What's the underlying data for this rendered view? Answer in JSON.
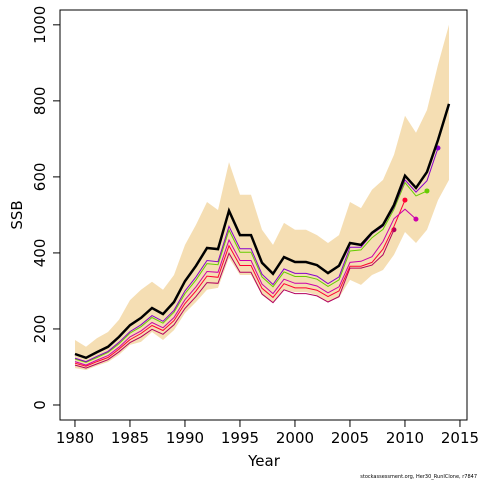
{
  "chart_data": {
    "type": "line",
    "x_label": "Year",
    "y_label": "SSB",
    "footnote": "stockassessment.org, Her30_RunIClone, r7847",
    "xlim": [
      1978.64,
      2015.64
    ],
    "ylim": [
      -39.5,
      1039
    ],
    "xticks": [
      1980,
      1985,
      1990,
      1995,
      2000,
      2005,
      2010,
      2015
    ],
    "yticks": [
      0,
      200,
      400,
      600,
      800,
      1000
    ],
    "x": [
      1980,
      1981,
      1982,
      1983,
      1984,
      1985,
      1986,
      1987,
      1988,
      1989,
      1990,
      1991,
      1992,
      1993,
      1994,
      1995,
      1996,
      1997,
      1998,
      1999,
      2000,
      2001,
      2002,
      2003,
      2004,
      2005,
      2006,
      2007,
      2008,
      2009,
      2010,
      2011,
      2012,
      2013,
      2014
    ],
    "band": {
      "color": "#f5deb3",
      "upper": [
        171,
        153,
        176,
        192,
        224,
        276,
        303,
        324,
        303,
        342,
        421,
        474,
        534,
        513,
        639,
        553,
        553,
        461,
        421,
        479,
        461,
        461,
        447,
        426,
        447,
        534,
        518,
        566,
        592,
        658,
        761,
        716,
        776,
        895,
        1000
      ],
      "lower": [
        97,
        92,
        103,
        113,
        132,
        158,
        166,
        192,
        171,
        197,
        242,
        271,
        303,
        308,
        387,
        342,
        342,
        289,
        268,
        303,
        297,
        297,
        289,
        271,
        282,
        329,
        316,
        342,
        355,
        395,
        455,
        426,
        461,
        539,
        592
      ]
    },
    "series": [
      {
        "color": "#b3005f",
        "width": 1,
        "end_dot": true,
        "values": [
          105,
          97,
          108,
          119,
          140,
          164,
          179,
          199,
          186,
          211,
          254,
          285,
          322,
          320,
          399,
          349,
          349,
          292,
          269,
          303,
          293,
          293,
          287,
          271,
          285,
          360,
          360,
          368,
          395,
          461,
          null,
          null,
          null,
          null,
          null
        ]
      },
      {
        "color": "#ff0033",
        "width": 1,
        "end_dot": true,
        "values": [
          110,
          102,
          114,
          125,
          147,
          172,
          188,
          209,
          196,
          222,
          267,
          300,
          339,
          336,
          419,
          367,
          367,
          307,
          283,
          319,
          308,
          308,
          302,
          285,
          300,
          365,
          365,
          375,
          410,
          470,
          539,
          null,
          null,
          null,
          null
        ]
      },
      {
        "color": "#cc00aa",
        "width": 1,
        "end_dot": true,
        "values": [
          114,
          105,
          118,
          130,
          152,
          179,
          195,
          217,
          203,
          230,
          277,
          311,
          351,
          349,
          434,
          380,
          380,
          318,
          293,
          331,
          320,
          320,
          313,
          295,
          311,
          375,
          378,
          390,
          430,
          490,
          515,
          489,
          null,
          null,
          null
        ]
      },
      {
        "color": "#66cc00",
        "width": 1,
        "end_dot": true,
        "values": [
          121,
          112,
          125,
          138,
          161,
          189,
          206,
          230,
          215,
          244,
          293,
          329,
          372,
          369,
          460,
          402,
          402,
          337,
          311,
          350,
          338,
          338,
          331,
          312,
          329,
          405,
          408,
          440,
          462,
          515,
          585,
          550,
          563,
          null,
          null
        ]
      },
      {
        "color": "#8800cc",
        "width": 1,
        "end_dot": true,
        "values": [
          123,
          114,
          128,
          141,
          165,
          193,
          211,
          235,
          220,
          249,
          300,
          337,
          380,
          377,
          470,
          411,
          411,
          344,
          317,
          358,
          346,
          346,
          339,
          319,
          337,
          415,
          415,
          450,
          470,
          520,
          592,
          560,
          590,
          676,
          null
        ]
      },
      {
        "color": "#000000",
        "width": 2.5,
        "end_dot": false,
        "values": [
          134,
          124,
          139,
          153,
          179,
          210,
          229,
          255,
          239,
          271,
          326,
          366,
          413,
          410,
          511,
          447,
          447,
          374,
          345,
          389,
          376,
          376,
          368,
          347,
          366,
          426,
          421,
          453,
          474,
          526,
          603,
          571,
          613,
          697,
          792
        ]
      }
    ]
  }
}
